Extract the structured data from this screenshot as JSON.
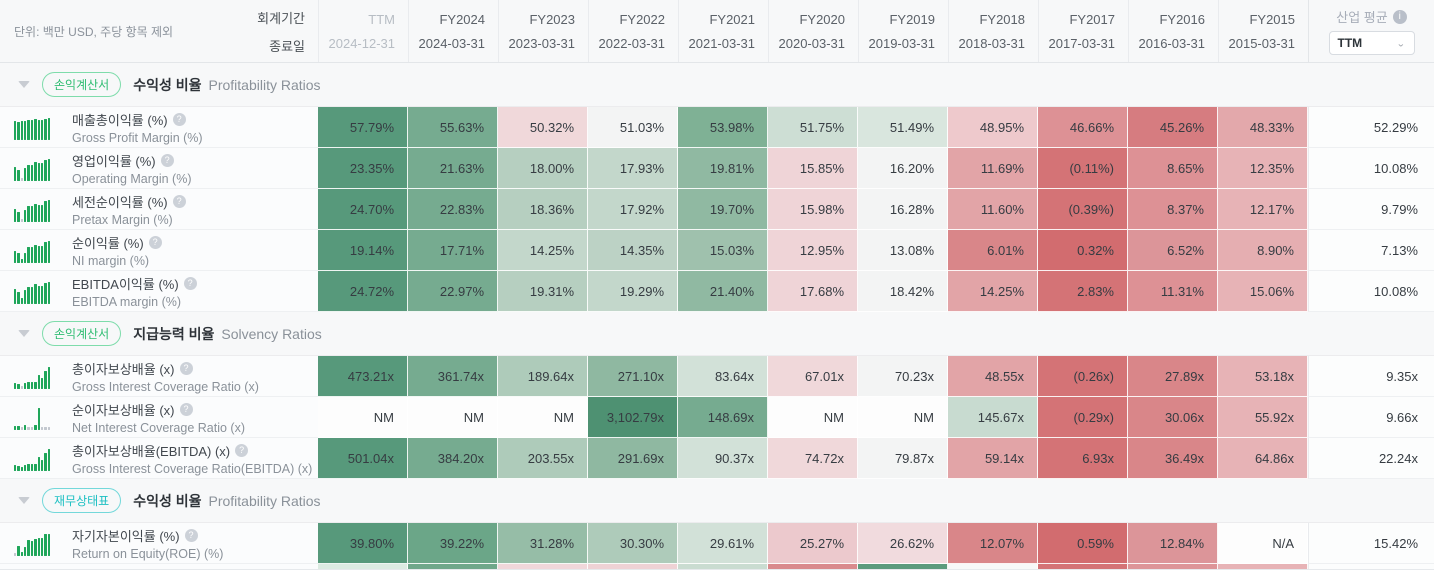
{
  "header": {
    "unit_note": "단위: 백만 USD, 주당 항목 제외",
    "period_label": "회계기간",
    "end_date_label": "종료일",
    "industry_label": "산업 평균",
    "industry_selected": "TTM"
  },
  "columns": [
    {
      "period": "TTM",
      "date": "2024-12-31",
      "muted": true
    },
    {
      "period": "FY2024",
      "date": "2024-03-31"
    },
    {
      "period": "FY2023",
      "date": "2023-03-31"
    },
    {
      "period": "FY2022",
      "date": "2022-03-31"
    },
    {
      "period": "FY2021",
      "date": "2021-03-31"
    },
    {
      "period": "FY2020",
      "date": "2020-03-31"
    },
    {
      "period": "FY2019",
      "date": "2019-03-31"
    },
    {
      "period": "FY2018",
      "date": "2018-03-31"
    },
    {
      "period": "FY2017",
      "date": "2017-03-31"
    },
    {
      "period": "FY2016",
      "date": "2016-03-31"
    },
    {
      "period": "FY2015",
      "date": "2015-03-31"
    }
  ],
  "colors": {
    "badge_green": "#2fbd72",
    "badge_green_border": "#7edcab",
    "badge_teal": "#1ec0c3",
    "badge_teal_border": "#73d8da",
    "bar_green": "#1fa65a",
    "bar_gray": "#c3c8cf"
  },
  "sections": [
    {
      "badge": "손익계산서",
      "badge_style": "green",
      "title": "수익성 비율",
      "subtitle": "Profitability Ratios",
      "rows": [
        {
          "name_ko": "매출총이익률 (%)",
          "name_en": "Gross Profit Margin (%)",
          "values": [
            "57.79%",
            "55.63%",
            "50.32%",
            "51.03%",
            "53.98%",
            "51.75%",
            "51.49%",
            "48.95%",
            "46.66%",
            "45.26%",
            "48.33%"
          ],
          "colors": [
            "#57997b",
            "#76ab90",
            "#f0d8da",
            "#f3f4f4",
            "#7fb195",
            "#cdded4",
            "#d9e6de",
            "#eec9cc",
            "#dd9195",
            "#d67c80",
            "#e3a8ab"
          ],
          "industry": "52.29%"
        },
        {
          "name_ko": "영업이익률 (%)",
          "name_en": "Operating Margin (%)",
          "values": [
            "23.35%",
            "21.63%",
            "18.00%",
            "17.93%",
            "19.81%",
            "15.85%",
            "16.20%",
            "11.69%",
            "(0.11%)",
            "8.65%",
            "12.35%"
          ],
          "colors": [
            "#57997b",
            "#76ab90",
            "#b6cfc0",
            "#c3d7cb",
            "#90b9a2",
            "#efd4d7",
            "#f3f4f4",
            "#e2a4a7",
            "#d47376",
            "#dd9195",
            "#e7b3b6"
          ],
          "industry": "10.08%"
        },
        {
          "name_ko": "세전순이익률 (%)",
          "name_en": "Pretax Margin (%)",
          "values": [
            "24.70%",
            "22.83%",
            "18.36%",
            "17.92%",
            "19.70%",
            "15.98%",
            "16.28%",
            "11.60%",
            "(0.39%)",
            "8.37%",
            "12.17%"
          ],
          "colors": [
            "#57997b",
            "#76ab90",
            "#b6cfc0",
            "#c3d7cb",
            "#90b9a2",
            "#efd4d7",
            "#f3f4f4",
            "#e2a4a7",
            "#d47376",
            "#dd9195",
            "#e7b3b6"
          ],
          "industry": "9.79%"
        },
        {
          "name_ko": "순이익률 (%)",
          "name_en": "NI margin (%)",
          "values": [
            "19.14%",
            "17.71%",
            "14.25%",
            "14.35%",
            "15.03%",
            "12.95%",
            "13.08%",
            "6.01%",
            "0.32%",
            "6.52%",
            "8.90%"
          ],
          "colors": [
            "#57997b",
            "#76ab90",
            "#c3d7cb",
            "#bcd2c5",
            "#9fc1ad",
            "#efd4d7",
            "#f3f4f4",
            "#d98689",
            "#d26c6f",
            "#dc9599",
            "#e5aeb1"
          ],
          "industry": "7.13%"
        },
        {
          "name_ko": "EBITDA이익률 (%)",
          "name_en": "EBITDA margin (%)",
          "values": [
            "24.72%",
            "22.97%",
            "19.31%",
            "19.29%",
            "21.40%",
            "17.68%",
            "18.42%",
            "14.25%",
            "2.83%",
            "11.31%",
            "15.06%"
          ],
          "colors": [
            "#57997b",
            "#76ab90",
            "#b6cfc0",
            "#c3d7cb",
            "#90b9a2",
            "#efd4d7",
            "#f3f4f4",
            "#e2a4a7",
            "#d47376",
            "#dd9195",
            "#e7b3b6"
          ],
          "industry": "10.08%"
        }
      ]
    },
    {
      "badge": "손익계산서",
      "badge_style": "green",
      "title": "지급능력 비율",
      "subtitle": "Solvency Ratios",
      "rows": [
        {
          "name_ko": "총이자보상배율 (x)",
          "name_en": "Gross Interest Coverage Ratio (x)",
          "values": [
            "473.21x",
            "361.74x",
            "189.64x",
            "271.10x",
            "83.64x",
            "67.01x",
            "70.23x",
            "48.55x",
            "(0.26x)",
            "27.89x",
            "53.18x"
          ],
          "colors": [
            "#57997b",
            "#76ab90",
            "#aecbba",
            "#8fb8a1",
            "#d2e1d8",
            "#f0d8da",
            "#f3f4f4",
            "#e2a4a7",
            "#d47376",
            "#d98689",
            "#e7b3b6"
          ],
          "industry": "9.35x"
        },
        {
          "name_ko": "순이자보상배율 (x)",
          "name_en": "Net Interest Coverage Ratio (x)",
          "values": [
            "NM",
            "NM",
            "NM",
            "3,102.79x",
            "148.69x",
            "NM",
            "NM",
            "145.67x",
            "(0.29x)",
            "30.06x",
            "55.92x"
          ],
          "colors": [
            "#fdfdfd",
            "#fdfdfd",
            "#fdfdfd",
            "#4e9172",
            "#76ab90",
            "#fdfdfd",
            "#fdfdfd",
            "#c8dbd0",
            "#d47376",
            "#d98689",
            "#e7b3b6"
          ],
          "industry": "9.66x"
        },
        {
          "name_ko": "총이자보상배율(EBITDA) (x)",
          "name_en": "Gross Interest Coverage Ratio(EBITDA) (x)",
          "values": [
            "501.04x",
            "384.20x",
            "203.55x",
            "291.69x",
            "90.37x",
            "74.72x",
            "79.87x",
            "59.14x",
            "6.93x",
            "36.49x",
            "64.86x"
          ],
          "colors": [
            "#57997b",
            "#76ab90",
            "#aecbba",
            "#8fb8a1",
            "#d2e1d8",
            "#f0d8da",
            "#f3f4f4",
            "#e2a4a7",
            "#d47376",
            "#d98689",
            "#e7b3b6"
          ],
          "industry": "22.24x"
        }
      ]
    },
    {
      "badge": "재무상태표",
      "badge_style": "teal",
      "title": "수익성 비율",
      "subtitle": "Profitability Ratios",
      "rows": [
        {
          "name_ko": "자기자본이익률 (%)",
          "name_en": "Return on Equity(ROE) (%)",
          "values": [
            "39.80%",
            "39.22%",
            "31.28%",
            "30.30%",
            "29.61%",
            "25.27%",
            "26.62%",
            "12.07%",
            "0.59%",
            "12.84%",
            "N/A"
          ],
          "colors": [
            "#57997b",
            "#6ba688",
            "#96bda7",
            "#aecbba",
            "#d2e1d8",
            "#ecc9cd",
            "#f1dbde",
            "#d98689",
            "#d26c6f",
            "#dc9599",
            "#fdfdfd"
          ],
          "industry": "15.42%"
        }
      ]
    }
  ],
  "partial_row_colors": [
    "#dcebe2",
    "#6fa78a",
    "#f0d7da",
    "#eed2d5",
    "#cadcd1",
    "#d98a8d",
    "#5b9b7d",
    "#f7f8f8",
    "#d47376",
    "#dd9598",
    "#e7b3b6"
  ]
}
